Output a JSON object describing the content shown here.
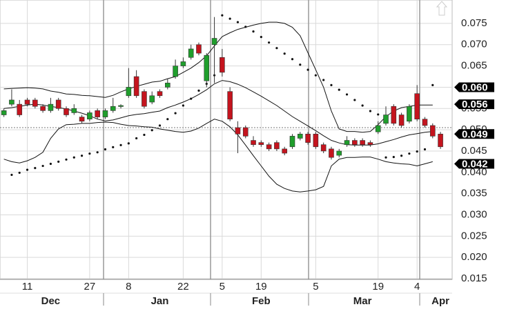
{
  "chart_data": {
    "type": "candlestick",
    "categories": [
      null,
      null,
      null,
      "11",
      null,
      null,
      null,
      null,
      null,
      null,
      null,
      "27",
      null,
      null,
      null,
      null,
      "8",
      null,
      null,
      null,
      null,
      null,
      null,
      "22",
      null,
      null,
      null,
      null,
      "5",
      null,
      null,
      null,
      null,
      "19",
      null,
      null,
      null,
      null,
      null,
      null,
      "5",
      null,
      null,
      null,
      null,
      null,
      null,
      null,
      "19",
      null,
      null,
      null,
      null,
      "4",
      null,
      null,
      null,
      null
    ],
    "months": [
      null,
      null,
      null,
      null,
      null,
      null,
      "Dec",
      null,
      null,
      null,
      null,
      null,
      null,
      null,
      null,
      null,
      null,
      null,
      null,
      null,
      "Jan",
      null,
      null,
      null,
      null,
      null,
      null,
      null,
      null,
      null,
      null,
      null,
      null,
      "Feb",
      null,
      null,
      null,
      null,
      null,
      null,
      null,
      null,
      null,
      null,
      null,
      null,
      "Mar",
      null,
      null,
      null,
      null,
      null,
      null,
      null,
      null,
      null,
      "Apr",
      null
    ],
    "open": [
      0.0535,
      0.056,
      0.056,
      0.057,
      0.057,
      0.0555,
      0.0545,
      0.057,
      0.055,
      0.054,
      0.053,
      0.0525,
      0.0545,
      0.053,
      0.0545,
      0.0555,
      0.058,
      0.0625,
      0.059,
      0.0565,
      0.059,
      0.06,
      0.0625,
      0.065,
      0.067,
      0.07,
      0.0615,
      0.07,
      0.067,
      0.059,
      0.0505,
      0.0505,
      0.0475,
      0.047,
      0.0465,
      0.047,
      0.0455,
      0.046,
      0.048,
      0.049,
      0.049,
      0.0465,
      0.0455,
      0.044,
      0.0465,
      0.0475,
      0.0475,
      0.047,
      0.0495,
      0.0515,
      0.0555,
      0.0535,
      0.052,
      0.0585,
      0.0525,
      0.051,
      0.049,
      null
    ],
    "high": [
      0.055,
      0.0595,
      0.057,
      0.0575,
      0.0575,
      0.056,
      0.0575,
      0.0575,
      0.0555,
      0.056,
      0.0535,
      0.0545,
      0.055,
      0.055,
      0.0575,
      0.056,
      0.0645,
      0.064,
      0.0595,
      0.059,
      0.0595,
      0.062,
      0.0665,
      0.067,
      0.07,
      0.0705,
      0.068,
      0.0765,
      0.069,
      0.06,
      0.052,
      0.051,
      0.0485,
      0.0475,
      0.047,
      0.0475,
      0.046,
      0.049,
      0.0495,
      0.0495,
      0.0495,
      0.047,
      0.046,
      0.0455,
      0.0485,
      0.048,
      0.048,
      0.0475,
      0.052,
      0.0555,
      0.056,
      0.054,
      0.056,
      0.0605,
      0.053,
      0.0515,
      0.0495,
      null
    ],
    "low": [
      0.053,
      0.0555,
      0.053,
      0.0555,
      0.055,
      0.054,
      0.054,
      0.0545,
      0.053,
      0.0535,
      0.0515,
      0.052,
      0.0525,
      0.0525,
      0.054,
      0.055,
      0.0575,
      0.0575,
      0.055,
      0.056,
      0.0575,
      0.0595,
      0.062,
      0.0645,
      0.0665,
      0.0675,
      0.06,
      0.061,
      0.0625,
      0.052,
      0.0445,
      0.048,
      0.046,
      0.046,
      0.045,
      0.045,
      0.044,
      0.0455,
      0.0475,
      0.0465,
      0.0455,
      0.0445,
      0.043,
      0.0435,
      0.046,
      0.046,
      0.046,
      0.046,
      0.049,
      0.051,
      0.051,
      0.0505,
      0.0515,
      0.052,
      0.0505,
      0.048,
      0.0455,
      null
    ],
    "close": [
      0.0545,
      0.057,
      0.0535,
      0.056,
      0.0555,
      0.0545,
      0.056,
      0.055,
      0.0535,
      0.055,
      0.052,
      0.054,
      0.053,
      0.0545,
      0.0555,
      0.0557,
      0.06,
      0.058,
      0.0555,
      0.058,
      0.058,
      0.061,
      0.065,
      0.066,
      0.069,
      0.068,
      0.0675,
      0.0715,
      0.0635,
      0.0525,
      0.049,
      0.0485,
      0.0465,
      0.0465,
      0.0455,
      0.0455,
      0.0445,
      0.0485,
      0.049,
      0.047,
      0.046,
      0.045,
      0.0435,
      0.045,
      0.0475,
      0.0465,
      0.0465,
      0.0465,
      0.051,
      0.0535,
      0.0515,
      0.051,
      0.0555,
      0.0525,
      0.051,
      0.0485,
      0.046,
      null
    ],
    "up_color": "#1f9e2c",
    "down_color": "#c4141e",
    "bands": [
      {
        "name": "upper",
        "color": "#111111",
        "values": [
          0.0596,
          0.0597,
          0.0598,
          0.0599,
          0.0598,
          0.0596,
          0.0591,
          0.0588,
          0.0584,
          0.0583,
          0.0581,
          0.058,
          0.0578,
          0.0576,
          0.0581,
          0.0589,
          0.0596,
          0.0602,
          0.0607,
          0.0612,
          0.0614,
          0.062,
          0.0625,
          0.0635,
          0.0645,
          0.0658,
          0.0674,
          0.0697,
          0.0719,
          0.0728,
          0.0736,
          0.0741,
          0.0746,
          0.075,
          0.0753,
          0.0753,
          0.075,
          0.0741,
          0.0721,
          0.0681,
          0.0641,
          0.06,
          0.0544,
          0.0502,
          0.0496,
          0.0496,
          0.0494,
          0.0496,
          0.0512,
          0.0531,
          0.0544,
          0.0552,
          0.0555,
          0.0558,
          0.0558,
          0.0558,
          null,
          null
        ]
      },
      {
        "name": "middle",
        "color": "#111111",
        "values": [
          0.055,
          0.0552,
          0.0555,
          0.0558,
          0.056,
          0.0558,
          0.0555,
          0.0552,
          0.0549,
          0.0544,
          0.0539,
          0.0533,
          0.0525,
          0.0521,
          0.0523,
          0.0528,
          0.0533,
          0.0536,
          0.0538,
          0.0541,
          0.0544,
          0.0552,
          0.0558,
          0.0565,
          0.0573,
          0.0583,
          0.0594,
          0.0608,
          0.0616,
          0.0613,
          0.0607,
          0.0599,
          0.0589,
          0.0579,
          0.0568,
          0.0557,
          0.0544,
          0.0531,
          0.052,
          0.0509,
          0.0498,
          0.0486,
          0.0475,
          0.0469,
          0.0465,
          0.0464,
          0.0464,
          0.0464,
          0.0467,
          0.0472,
          0.0477,
          0.0483,
          0.0488,
          0.0491,
          0.0494,
          0.0496,
          null,
          null
        ]
      },
      {
        "name": "lower",
        "color": "#111111",
        "values": [
          0.0431,
          0.0425,
          0.0422,
          0.0427,
          0.0435,
          0.0447,
          0.048,
          0.0502,
          0.0512,
          0.0513,
          0.0515,
          0.0515,
          0.0517,
          0.0518,
          0.0517,
          0.0513,
          0.051,
          0.0509,
          0.0507,
          0.0506,
          0.0502,
          0.0499,
          0.0496,
          0.0494,
          0.0497,
          0.0504,
          0.0515,
          0.0525,
          0.052,
          0.0507,
          0.0488,
          0.0464,
          0.0439,
          0.0415,
          0.0391,
          0.0372,
          0.0362,
          0.0356,
          0.0354,
          0.0356,
          0.0359,
          0.0367,
          0.0415,
          0.0431,
          0.0435,
          0.0435,
          0.0436,
          0.0436,
          0.0431,
          0.0425,
          0.0422,
          0.042,
          0.0419,
          0.0415,
          0.042,
          0.0425,
          null,
          null
        ]
      }
    ],
    "sar": [
      null,
      0.0394,
      0.0399,
      0.0406,
      0.041,
      0.0415,
      0.042,
      0.0425,
      0.043,
      0.0435,
      0.0439,
      0.0444,
      0.0447,
      0.0454,
      0.0459,
      0.0464,
      0.0468,
      0.048,
      0.0488,
      0.0499,
      0.051,
      0.0525,
      0.0539,
      0.0557,
      0.0573,
      0.0592,
      0.0608,
      0.0628,
      0.0769,
      0.0761,
      0.0753,
      0.0742,
      0.0731,
      0.0718,
      0.0705,
      0.0692,
      0.0679,
      0.0666,
      0.0653,
      0.0641,
      0.0628,
      0.0617,
      0.0605,
      0.0594,
      0.0583,
      0.057,
      0.0557,
      0.0544,
      0.0536,
      0.0435,
      0.0436,
      0.0439,
      0.0444,
      0.0449,
      0.0454,
      0.0605,
      null,
      null
    ],
    "reference_line": 0.0505,
    "price_labels": [
      {
        "value": 0.06,
        "label": "0.060"
      },
      {
        "value": 0.056,
        "label": "0.056"
      },
      {
        "value": 0.049,
        "label": "0.049"
      },
      {
        "value": 0.042,
        "label": "0.042"
      }
    ],
    "ylim": [
      0.015,
      0.0805
    ],
    "yticks": [
      {
        "value": 0.075,
        "label": "0.075"
      },
      {
        "value": 0.07,
        "label": "0.070"
      },
      {
        "value": 0.065,
        "label": "0.065"
      },
      {
        "value": 0.06,
        "label": "0.060"
      },
      {
        "value": 0.055,
        "label": "0.055"
      },
      {
        "value": 0.05,
        "label": "0.050"
      },
      {
        "value": 0.045,
        "label": "0.045"
      },
      {
        "value": 0.04,
        "label": "0.040"
      },
      {
        "value": 0.035,
        "label": "0.035"
      },
      {
        "value": 0.03,
        "label": "0.030"
      },
      {
        "value": 0.025,
        "label": "0.025"
      },
      {
        "value": 0.02,
        "label": "0.020"
      },
      {
        "value": 0.015,
        "label": "0.015"
      }
    ],
    "grid": true
  }
}
